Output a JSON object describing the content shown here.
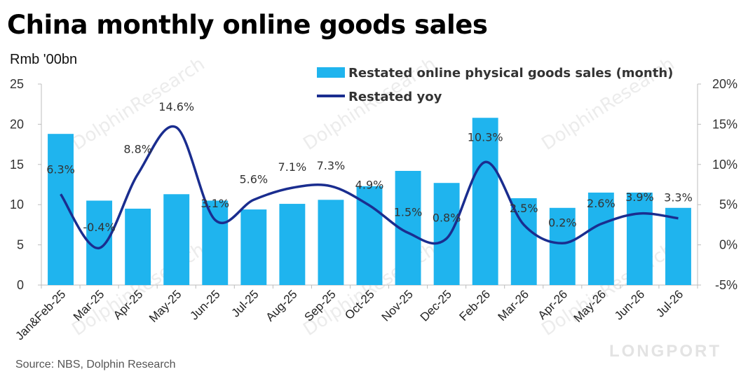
{
  "header": {
    "title": "China monthly online goods sales",
    "unit": "Rmb '00bn",
    "source": "Source: NBS, Dolphin Research"
  },
  "watermarks": {
    "text": "DolphinResearch",
    "brand": "LONGPORT"
  },
  "colors": {
    "bar": "#1fb4ee",
    "line": "#1a2d8f"
  },
  "chart_data": {
    "type": "bar",
    "categories": [
      "Jan&Feb-25",
      "Mar-25",
      "Apr-25",
      "May-25",
      "Jun-25",
      "Jul-25",
      "Aug-25",
      "Sep-25",
      "Oct-25",
      "Nov-25",
      "Dec-25",
      "Feb-26",
      "Mar-26",
      "Apr-26",
      "May-26",
      "Jun-26",
      "Jul-26"
    ],
    "series": [
      {
        "name": "Restated online physical goods sales  (month)",
        "type": "bar",
        "axis": "left",
        "values": [
          18.8,
          10.5,
          9.5,
          11.3,
          10.5,
          9.4,
          10.1,
          10.6,
          12.3,
          14.2,
          12.7,
          20.8,
          10.8,
          9.6,
          11.5,
          11.5,
          9.6
        ]
      },
      {
        "name": "Restated yoy",
        "type": "line",
        "axis": "right",
        "values": [
          6.3,
          -0.4,
          8.8,
          14.6,
          3.1,
          5.6,
          7.1,
          7.3,
          4.9,
          1.5,
          0.8,
          10.3,
          2.5,
          0.2,
          2.6,
          3.9,
          3.3
        ],
        "labels": [
          "6.3%",
          "-0.4%",
          "8.8%",
          "14.6%",
          "3.1%",
          "5.6%",
          "7.1%",
          "7.3%",
          "4.9%",
          "1.5%",
          "0.8%",
          "10.3%",
          "2.5%",
          "0.2%",
          "2.6%",
          "3.9%",
          "3.3%"
        ]
      }
    ],
    "y_left": {
      "ylim": [
        0,
        25
      ],
      "ticks": [
        "0",
        "5",
        "10",
        "15",
        "20",
        "25"
      ],
      "tick_values": [
        0,
        5,
        10,
        15,
        20,
        25
      ]
    },
    "y_right": {
      "ylim": [
        -5,
        20
      ],
      "ticks": [
        "-5%",
        "0%",
        "5%",
        "10%",
        "15%",
        "20%"
      ],
      "tick_values": [
        -5,
        0,
        5,
        10,
        15,
        20
      ]
    },
    "grid": false,
    "legend_position": "top-center"
  }
}
